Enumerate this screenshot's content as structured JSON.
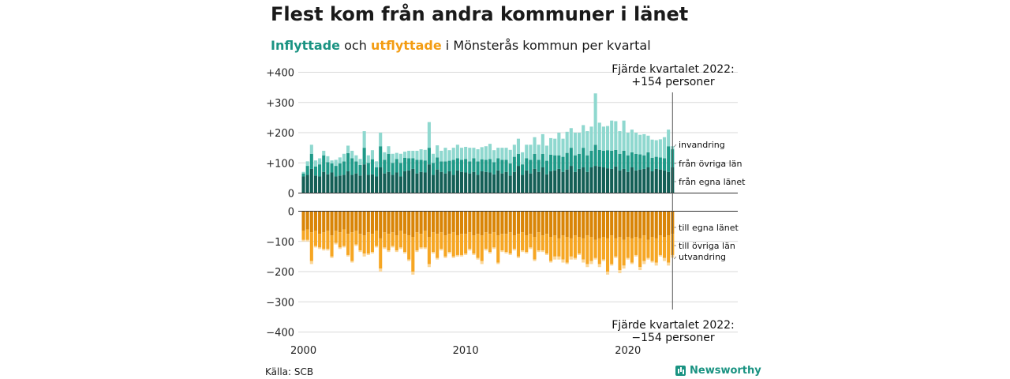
{
  "title": "Flest kom från andra kommuner i länet",
  "subtitle": {
    "inflyttade": "Inflyttade",
    "och": "och",
    "utflyttade": "utflyttade",
    "rest": "i Mönsterås kommun per kvartal"
  },
  "source": "Källa: SCB",
  "brand": "Newsworthy",
  "colors": {
    "in_same_county": "#145f56",
    "in_other_counties": "#1f9a88",
    "in_immigration": "#8fd8cf",
    "out_same_county": "#d98507",
    "out_other_counties": "#f6a623",
    "out_emigration": "#fbd79a",
    "brand": "#1a9382"
  },
  "chart_data": {
    "type": "bar",
    "stacked": true,
    "x_ticks": [
      "2000",
      "2010",
      "2020"
    ],
    "y_ticks": [
      "+400",
      "+300",
      "+200",
      "+100",
      "0",
      "0",
      "−100",
      "−200",
      "−300",
      "−400"
    ],
    "upper_ylim": [
      0,
      400
    ],
    "lower_ylim": [
      -400,
      0
    ],
    "grid": true,
    "start_year": 2000,
    "quarters": 92,
    "series": [
      {
        "name": "från egna länet",
        "panel": "upper",
        "values": [
          55,
          60,
          80,
          58,
          55,
          70,
          62,
          68,
          55,
          58,
          60,
          72,
          60,
          65,
          58,
          95,
          60,
          62,
          55,
          85,
          65,
          70,
          60,
          68,
          55,
          72,
          75,
          80,
          65,
          70,
          68,
          95,
          60,
          78,
          70,
          65,
          72,
          60,
          75,
          70,
          68,
          65,
          70,
          60,
          72,
          70,
          68,
          62,
          75,
          65,
          70,
          58,
          70,
          90,
          60,
          75,
          65,
          80,
          70,
          85,
          62,
          72,
          75,
          80,
          70,
          78,
          90,
          70,
          80,
          85,
          70,
          85,
          90,
          88,
          85,
          82,
          80,
          88,
          75,
          80,
          70,
          85,
          75,
          78,
          80,
          85,
          72,
          80,
          78,
          75,
          70,
          85
        ]
      },
      {
        "name": "från övriga län",
        "panel": "upper",
        "values": [
          10,
          30,
          50,
          30,
          40,
          55,
          40,
          30,
          35,
          40,
          45,
          60,
          55,
          40,
          35,
          55,
          40,
          50,
          30,
          70,
          45,
          60,
          40,
          45,
          45,
          45,
          40,
          35,
          45,
          40,
          40,
          55,
          40,
          40,
          35,
          40,
          35,
          50,
          40,
          40,
          45,
          40,
          45,
          45,
          40,
          40,
          45,
          40,
          40,
          45,
          40,
          40,
          50,
          40,
          35,
          40,
          45,
          50,
          40,
          45,
          45,
          55,
          50,
          45,
          50,
          55,
          60,
          55,
          50,
          65,
          55,
          55,
          70,
          55,
          55,
          60,
          60,
          55,
          55,
          60,
          55,
          50,
          55,
          50,
          45,
          50,
          45,
          40,
          40,
          40,
          85,
          60
        ]
      },
      {
        "name": "invandring",
        "panel": "upper",
        "values": [
          5,
          15,
          30,
          20,
          20,
          15,
          20,
          10,
          20,
          20,
          25,
          25,
          25,
          20,
          20,
          55,
          25,
          30,
          20,
          45,
          25,
          25,
          30,
          20,
          30,
          20,
          25,
          25,
          30,
          35,
          35,
          85,
          30,
          40,
          35,
          45,
          35,
          40,
          45,
          40,
          40,
          45,
          35,
          40,
          40,
          45,
          50,
          40,
          35,
          40,
          40,
          45,
          40,
          50,
          40,
          45,
          50,
          55,
          50,
          65,
          50,
          55,
          55,
          75,
          60,
          70,
          65,
          75,
          70,
          75,
          80,
          80,
          170,
          90,
          80,
          80,
          100,
          95,
          75,
          100,
          75,
          75,
          70,
          65,
          70,
          55,
          60,
          55,
          60,
          70,
          55,
          10
        ]
      },
      {
        "name": "till egna länet",
        "panel": "lower",
        "values": [
          -65,
          -60,
          -70,
          -65,
          -75,
          -70,
          -65,
          -80,
          -65,
          -70,
          -60,
          -75,
          -70,
          -65,
          -75,
          -80,
          -70,
          -75,
          -65,
          -90,
          -70,
          -75,
          -70,
          -80,
          -65,
          -75,
          -80,
          -85,
          -70,
          -75,
          -65,
          -85,
          -70,
          -75,
          -70,
          -80,
          -75,
          -70,
          -80,
          -75,
          -75,
          -70,
          -80,
          -75,
          -80,
          -70,
          -75,
          -70,
          -80,
          -75,
          -75,
          -70,
          -80,
          -75,
          -70,
          -80,
          -75,
          -85,
          -70,
          -80,
          -75,
          -85,
          -80,
          -90,
          -80,
          -85,
          -90,
          -80,
          -85,
          -90,
          -80,
          -85,
          -95,
          -90,
          -85,
          -90,
          -80,
          -90,
          -85,
          -95,
          -85,
          -90,
          -85,
          -90,
          -80,
          -95,
          -85,
          -90,
          -80,
          -85,
          -80,
          -75
        ]
      },
      {
        "name": "till övriga län",
        "panel": "lower",
        "values": [
          -30,
          -35,
          -95,
          -50,
          -45,
          -55,
          -60,
          -70,
          -40,
          -50,
          -55,
          -70,
          -95,
          -45,
          -55,
          -60,
          -70,
          -60,
          -50,
          -100,
          -50,
          -55,
          -45,
          -50,
          -55,
          -60,
          -80,
          -115,
          -60,
          -45,
          -55,
          -90,
          -65,
          -80,
          -55,
          -70,
          -60,
          -80,
          -65,
          -70,
          -65,
          -55,
          -60,
          -80,
          -85,
          -55,
          -60,
          -50,
          -90,
          -55,
          -60,
          -70,
          -45,
          -75,
          -60,
          -55,
          -45,
          -75,
          -60,
          -50,
          -65,
          -80,
          -70,
          -60,
          -80,
          -85,
          -60,
          -75,
          -55,
          -70,
          -95,
          -80,
          -60,
          -85,
          -75,
          -110,
          -95,
          -60,
          -110,
          -85,
          -70,
          -80,
          -60,
          -95,
          -85,
          -60,
          -80,
          -80,
          -65,
          -70,
          -90,
          -70
        ]
      },
      {
        "name": "utvandring",
        "panel": "lower",
        "values": [
          -5,
          -5,
          -10,
          -5,
          -5,
          -5,
          -5,
          -5,
          -5,
          -5,
          -5,
          -5,
          -5,
          -5,
          -5,
          -10,
          -5,
          -5,
          -5,
          -10,
          -5,
          -5,
          -5,
          -5,
          -5,
          -5,
          -5,
          -10,
          -5,
          -5,
          -5,
          -10,
          -5,
          -5,
          -5,
          -5,
          -5,
          -5,
          -5,
          -5,
          -5,
          -5,
          -5,
          -5,
          -10,
          -5,
          -5,
          -5,
          -5,
          -5,
          -5,
          -5,
          -5,
          -5,
          -5,
          -5,
          -5,
          -5,
          -5,
          -5,
          -5,
          -5,
          -10,
          -10,
          -10,
          -5,
          -10,
          -5,
          -5,
          -10,
          -10,
          -10,
          -5,
          -10,
          -5,
          -10,
          -5,
          -5,
          -10,
          -10,
          -5,
          -5,
          -5,
          -10,
          -10,
          -5,
          -5,
          -10,
          -5,
          -10,
          -10,
          -9
        ]
      }
    ],
    "annotations": {
      "upper_line1": "Fjärde kvartalet 2022:",
      "upper_line2": "+154 personer",
      "lower_line1": "Fjärde kvartalet 2022:",
      "lower_line2": "−154 personer"
    }
  }
}
